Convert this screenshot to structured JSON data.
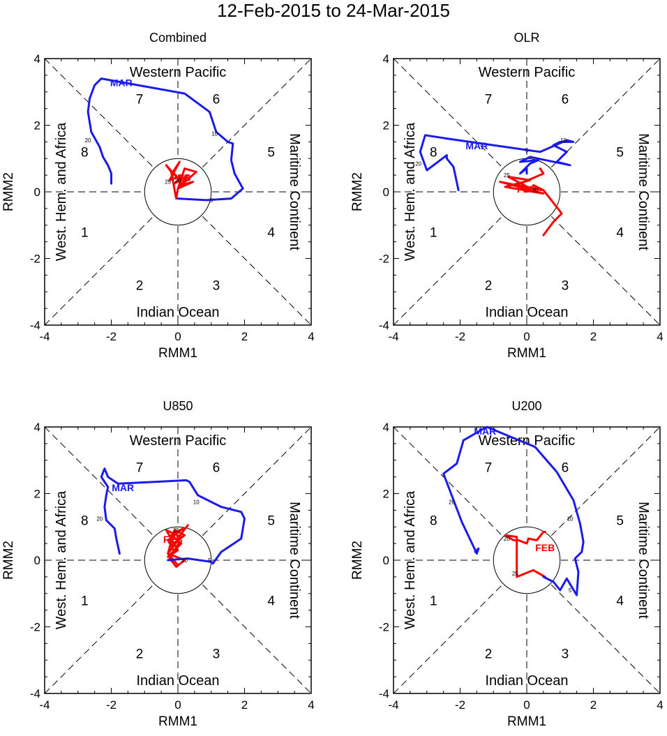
{
  "title": "12-Feb-2015 to 24-Mar-2015",
  "colors": {
    "feb": "#ff0000",
    "mar": "#1a1aee",
    "axis": "#000000"
  },
  "chart_data": [
    {
      "type": "line",
      "title": "Combined",
      "xlabel": "RMM1",
      "ylabel": "RMM2",
      "xlim": [
        -4,
        4
      ],
      "ylim": [
        -4,
        4
      ],
      "xticks": [
        "-4",
        "-2",
        "0",
        "2",
        "4"
      ],
      "yticks": [
        "-4",
        "-2",
        "0",
        "2",
        "4"
      ],
      "regions": {
        "top": "Western Pacific",
        "bottom": "Indian Ocean",
        "left": "West. Hem. and Africa",
        "right": "Maritime Continent"
      },
      "phases": [
        "1",
        "2",
        "3",
        "4",
        "5",
        "6",
        "7",
        "8"
      ],
      "series": [
        {
          "name": "FEB",
          "label": "FEB",
          "label_at": [
            0.1,
            0.45
          ],
          "x": [
            -0.05,
            -0.2,
            -0.35,
            0.0,
            -0.15,
            0.05,
            -0.25,
            0.15,
            -0.1,
            0.3,
            0.0,
            0.45,
            0.1,
            0.55,
            0.2,
            0.0,
            -0.05
          ],
          "y": [
            -0.2,
            0.6,
            0.8,
            0.4,
            0.6,
            0.9,
            0.35,
            0.5,
            0.25,
            0.5,
            0.1,
            0.3,
            0.2,
            0.6,
            0.7,
            0.1,
            -0.2
          ]
        },
        {
          "name": "MAR",
          "label": "MAR",
          "label_at": [
            -1.7,
            3.3
          ],
          "x": [
            0.0,
            0.85,
            1.6,
            1.95,
            1.7,
            1.6,
            1.65,
            1.5,
            1.15,
            0.95,
            0.2,
            -2.3,
            -2.5,
            -2.65,
            -2.7,
            -2.6,
            -2.35,
            -2.25,
            -2.1,
            -2.0,
            -2.0
          ],
          "y": [
            -0.2,
            -0.25,
            -0.2,
            0.1,
            0.55,
            0.95,
            1.45,
            1.5,
            1.8,
            2.4,
            2.95,
            3.4,
            3.2,
            2.8,
            2.4,
            1.8,
            1.35,
            1.05,
            0.8,
            0.55,
            0.25
          ]
        }
      ],
      "day_marks": [
        {
          "text": "25",
          "x": -0.3,
          "y": 0.3
        },
        {
          "text": "20",
          "x": 0.0,
          "y": 0.35
        },
        {
          "text": "5",
          "x": 1.0,
          "y": -0.25
        },
        {
          "text": "10",
          "x": 1.1,
          "y": 1.75
        },
        {
          "text": "20",
          "x": -2.7,
          "y": 1.55
        }
      ]
    },
    {
      "type": "line",
      "title": "OLR",
      "xlabel": "RMM1",
      "ylabel": "RMM2",
      "xlim": [
        -4,
        4
      ],
      "ylim": [
        -4,
        4
      ],
      "xticks": [
        "-4",
        "-2",
        "0",
        "2",
        "4"
      ],
      "yticks": [
        "-4",
        "-2",
        "0",
        "2",
        "4"
      ],
      "regions": {
        "top": "Western Pacific",
        "bottom": "Indian Ocean",
        "left": "West. Hem. and Africa",
        "right": "Maritime Continent"
      },
      "phases": [
        "1",
        "2",
        "3",
        "4",
        "5",
        "6",
        "7",
        "8"
      ],
      "series": [
        {
          "name": "FEB",
          "label": "FEB",
          "label_at": [
            0.0,
            0.1
          ],
          "x": [
            0.5,
            0.8,
            1.05,
            0.5,
            0.2,
            0.45,
            -0.8,
            0.5,
            -0.65,
            0.1,
            -0.55,
            0.3,
            -0.3,
            0.5,
            0.4
          ],
          "y": [
            -1.3,
            -0.9,
            -0.65,
            0.05,
            0.2,
            0.05,
            0.3,
            -0.05,
            0.15,
            0.35,
            0.45,
            0.0,
            0.2,
            0.55,
            0.7
          ]
        },
        {
          "name": "MAR",
          "label": "MAR",
          "label_at": [
            -1.5,
            1.4
          ],
          "x": [
            0.0,
            0.0,
            -0.2,
            0.1,
            0.35,
            -0.2,
            0.1,
            1.3,
            0.9,
            1.2,
            0.8,
            1.0,
            1.4,
            1.2,
            0.4,
            -2.4,
            -3.05,
            -3.2,
            -3.0,
            -2.4,
            -2.4,
            -2.2,
            -2.05
          ],
          "y": [
            0.55,
            0.7,
            0.55,
            0.85,
            0.95,
            0.9,
            1.05,
            0.8,
            0.9,
            1.2,
            1.4,
            1.5,
            1.5,
            1.55,
            1.2,
            1.6,
            1.7,
            1.2,
            0.65,
            1.1,
            1.0,
            0.75,
            0.05
          ]
        }
      ],
      "day_marks": [
        {
          "text": "25",
          "x": -0.6,
          "y": 0.5
        },
        {
          "text": "20",
          "x": 0.25,
          "y": 0.05
        },
        {
          "text": "5",
          "x": 0.0,
          "y": 1.25
        },
        {
          "text": "10",
          "x": 1.1,
          "y": 1.55
        },
        {
          "text": "20",
          "x": -3.25,
          "y": 0.85
        }
      ]
    },
    {
      "type": "line",
      "title": "U850",
      "xlabel": "RMM1",
      "ylabel": "RMM2",
      "xlim": [
        -4,
        4
      ],
      "ylim": [
        -4,
        4
      ],
      "xticks": [
        "-4",
        "-2",
        "0",
        "2",
        "4"
      ],
      "yticks": [
        "-4",
        "-2",
        "0",
        "2",
        "4"
      ],
      "regions": {
        "top": "Western Pacific",
        "bottom": "Indian Ocean",
        "left": "West. Hem. and Africa",
        "right": "Maritime Continent"
      },
      "phases": [
        "1",
        "2",
        "3",
        "4",
        "5",
        "6",
        "7",
        "8"
      ],
      "series": [
        {
          "name": "FEB",
          "label": "FEB",
          "label_at": [
            -0.15,
            0.65
          ],
          "x": [
            0.0,
            -0.3,
            -0.1,
            0.2,
            -0.25,
            0.1,
            -0.35,
            0.0,
            -0.3,
            0.1,
            -0.2,
            0.15,
            -0.3,
            -0.1,
            0.05,
            -0.25,
            -0.05,
            0.2,
            -0.3,
            0.0,
            0.1,
            0.3
          ],
          "y": [
            -0.15,
            0.2,
            0.9,
            0.75,
            0.4,
            0.7,
            0.9,
            0.3,
            0.1,
            0.5,
            0.75,
            0.95,
            0.6,
            0.25,
            0.55,
            0.05,
            -0.2,
            0.0,
            0.2,
            0.6,
            0.8,
            1.05
          ]
        },
        {
          "name": "MAR",
          "label": "MAR",
          "label_at": [
            -1.65,
            2.2
          ],
          "x": [
            -0.3,
            0.3,
            1.0,
            1.05,
            1.3,
            1.9,
            2.0,
            1.9,
            1.3,
            0.6,
            0.35,
            0.25,
            -0.7,
            -1.8,
            -2.1,
            -2.2,
            -2.3,
            -2.1,
            -2.15,
            -2.2,
            -2.15,
            -1.9,
            -1.85,
            -1.75
          ],
          "y": [
            0.0,
            0.05,
            -0.05,
            -0.1,
            0.25,
            0.65,
            1.25,
            1.45,
            1.6,
            1.95,
            2.35,
            2.4,
            2.35,
            2.3,
            2.5,
            2.75,
            2.5,
            2.2,
            1.95,
            1.6,
            1.2,
            0.95,
            0.65,
            0.2
          ]
        }
      ],
      "day_marks": [
        {
          "text": "25",
          "x": -0.05,
          "y": 0.9
        },
        {
          "text": "20",
          "x": 0.2,
          "y": 0.0
        },
        {
          "text": "5",
          "x": 0.95,
          "y": 0.0
        },
        {
          "text": "10",
          "x": 0.55,
          "y": 1.75
        },
        {
          "text": "20",
          "x": -2.35,
          "y": 1.25
        }
      ]
    },
    {
      "type": "line",
      "title": "U200",
      "xlabel": "RMM1",
      "ylabel": "RMM2",
      "xlim": [
        -4,
        4
      ],
      "ylim": [
        -4,
        4
      ],
      "xticks": [
        "-4",
        "-2",
        "0",
        "2",
        "4"
      ],
      "yticks": [
        "-4",
        "-2",
        "0",
        "2",
        "4"
      ],
      "regions": {
        "top": "Western Pacific",
        "bottom": "Indian Ocean",
        "left": "West. Hem. and Africa",
        "right": "Maritime Continent"
      },
      "phases": [
        "1",
        "2",
        "3",
        "4",
        "5",
        "6",
        "7",
        "8"
      ],
      "series": [
        {
          "name": "FEB",
          "label": "FEB",
          "label_at": [
            0.55,
            0.4
          ],
          "x": [
            0.55,
            0.2,
            -0.3,
            -0.3,
            -0.65,
            -0.4,
            -0.25,
            0.0,
            0.05,
            0.3,
            0.5,
            0.55
          ],
          "y": [
            -0.5,
            -0.3,
            -0.5,
            0.7,
            0.75,
            0.6,
            0.6,
            0.5,
            0.65,
            0.6,
            0.85,
            0.85
          ]
        },
        {
          "name": "MAR",
          "label": "MAR",
          "label_at": [
            -1.25,
            3.9
          ],
          "x": [
            0.5,
            0.8,
            1.0,
            1.2,
            1.5,
            1.55,
            1.45,
            1.65,
            1.7,
            1.6,
            1.4,
            0.9,
            0.25,
            -1.2,
            -1.9,
            -2.1,
            -2.5,
            -1.95,
            -1.5,
            -1.45,
            -1.55
          ],
          "y": [
            -0.5,
            -0.65,
            -0.9,
            -0.55,
            -1.05,
            -0.35,
            0.05,
            0.25,
            0.55,
            1.1,
            1.8,
            2.65,
            3.4,
            4.0,
            3.6,
            2.9,
            2.6,
            1.15,
            0.2,
            0.35,
            0.25
          ]
        }
      ],
      "day_marks": [
        {
          "text": "25",
          "x": -0.35,
          "y": -0.4
        },
        {
          "text": "20",
          "x": -0.6,
          "y": 0.65
        },
        {
          "text": "5",
          "x": 1.3,
          "y": -0.9
        },
        {
          "text": "10",
          "x": 1.3,
          "y": 1.25
        },
        {
          "text": "20",
          "x": -2.25,
          "y": 1.75
        }
      ]
    }
  ]
}
